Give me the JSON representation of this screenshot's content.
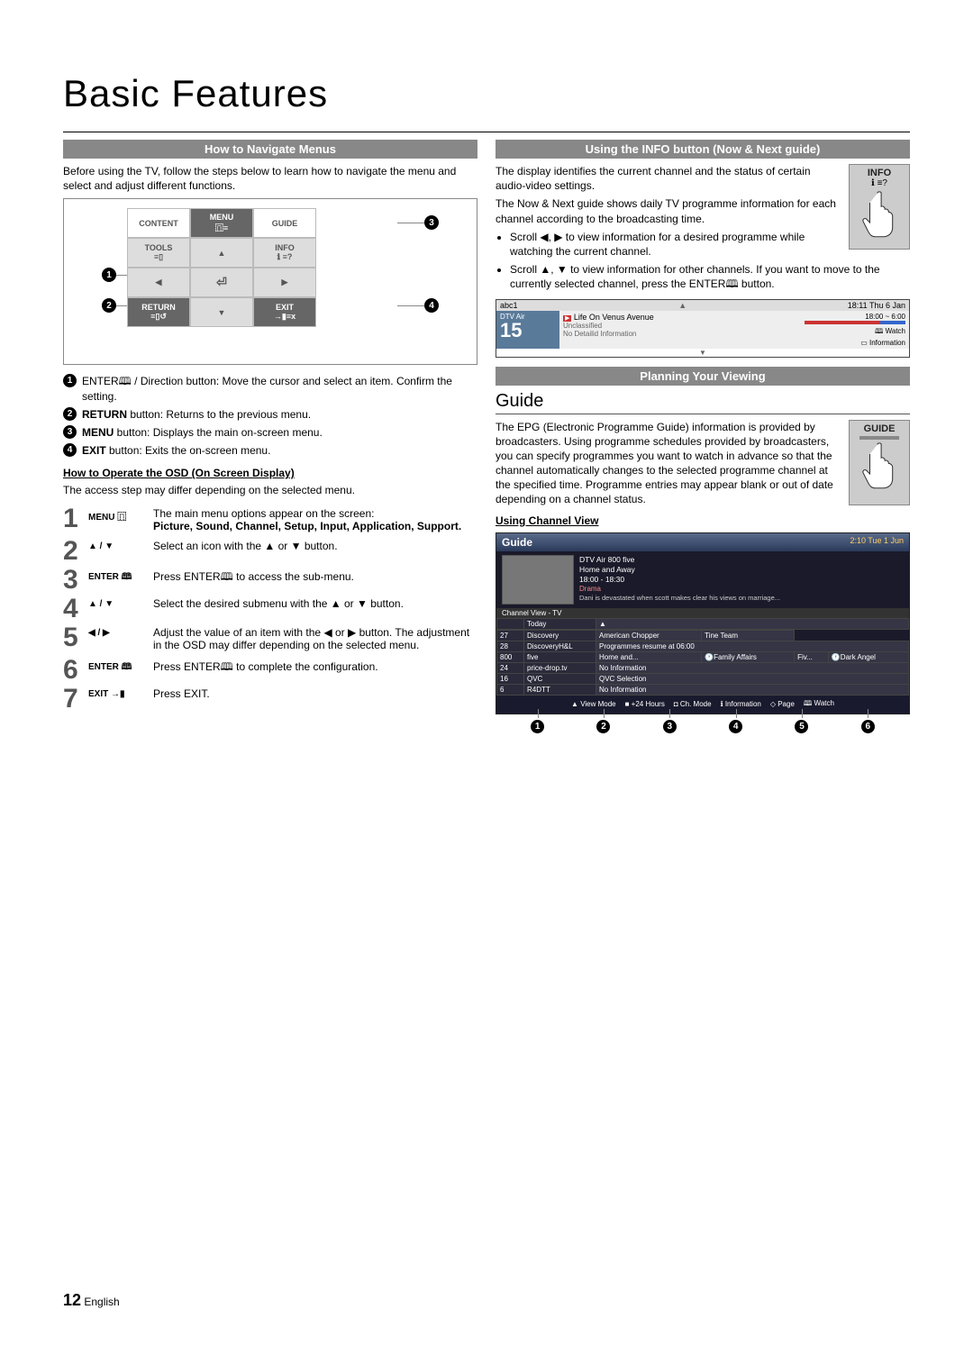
{
  "title": "Basic Features",
  "left": {
    "section1_title": "How to Navigate Menus",
    "intro": "Before using the TV, follow the steps below to learn how to navigate the menu and select and adjust different functions.",
    "remote": {
      "content": "CONTENT",
      "menu": "MENU",
      "guide": "GUIDE",
      "tools": "TOOLS",
      "info": "INFO",
      "return": "RETURN",
      "exit": "EXIT"
    },
    "callouts": {
      "1": "ENTER🕮 / Direction button: Move the cursor and select an item. Confirm the setting.",
      "2": "RETURN button: Returns to the previous menu.",
      "3": "MENU button: Displays the main on-screen menu.",
      "4": "EXIT button: Exits the on-screen menu."
    },
    "osd_head": "How to Operate the OSD (On Screen Display)",
    "osd_note": "The access step may differ depending on the selected menu.",
    "osd": [
      {
        "n": "1",
        "key": "MENU ⿵",
        "desc": "The main menu options appear on the screen:",
        "bold": "Picture, Sound, Channel, Setup, Input, Application, Support."
      },
      {
        "n": "2",
        "key": "▲ / ▼",
        "desc": "Select an icon with the ▲ or ▼ button."
      },
      {
        "n": "3",
        "key": "ENTER 🕮",
        "desc": "Press ENTER🕮 to access the sub-menu."
      },
      {
        "n": "4",
        "key": "▲ / ▼",
        "desc": "Select the desired submenu with the ▲ or ▼ button."
      },
      {
        "n": "5",
        "key": "◀ / ▶",
        "desc": "Adjust the value of an item with the ◀ or ▶ button. The adjustment in the OSD may differ depending on the selected menu."
      },
      {
        "n": "6",
        "key": "ENTER 🕮",
        "desc": "Press ENTER🕮 to complete the configuration."
      },
      {
        "n": "7",
        "key": "EXIT →▮",
        "desc": "Press EXIT."
      }
    ]
  },
  "right": {
    "section1_title": "Using the INFO button (Now & Next guide)",
    "info_label": "INFO",
    "p1": "The display identifies the current channel and the status of certain audio-video settings.",
    "p2": "The Now & Next guide shows daily TV programme information for each channel according to the broadcasting time.",
    "b1": "Scroll ◀, ▶ to view information for a desired programme while watching the current channel.",
    "b2": "Scroll ▲, ▼ to view information for other channels. If you want to move to the currently selected channel, press the ENTER🕮 button.",
    "infobox": {
      "ch_name": "abc1",
      "time": "18:11 Thu 6 Jan",
      "src": "DTV Air",
      "num": "15",
      "prog": "Life On Venus Avenue",
      "rating": "Unclassified",
      "detail": "No Detailid Information",
      "span": "18:00 ~ 6:00",
      "watch": "🕮 Watch",
      "info": "▭ Information"
    },
    "section2_title": "Planning Your Viewing",
    "guide_h": "Guide",
    "guide_label": "GUIDE",
    "guide_p": "The EPG (Electronic Programme Guide) information is provided by broadcasters. Using programme schedules provided by broadcasters, you can specify programmes you want to watch in advance so that the channel automatically changes to the selected programme channel at the specified time. Programme entries may appear blank or out of date depending on a channel status.",
    "chview_h": "Using Channel View",
    "guide_shot": {
      "title": "Guide",
      "datetime": "2:10 Tue 1 Jun",
      "ch_line": "DTV Air 800 five",
      "prog_name": "Home and Away",
      "prog_time": "18:00 - 18:30",
      "genre": "Drama",
      "synopsis": "Dani is devastated when scott makes clear his views on marriage...",
      "sub": "Channel View - TV",
      "today": "Today",
      "rows": [
        {
          "ch": "27",
          "name": "Discovery",
          "progs": [
            "American Chopper",
            "Tine Team"
          ]
        },
        {
          "ch": "28",
          "name": "DiscoveryH&L",
          "progs": [
            "Programmes resume at 06:00"
          ]
        },
        {
          "ch": "800",
          "name": "five",
          "progs": [
            "Home and...",
            "🕐Family Affairs",
            "Fiv...",
            "🕐Dark Angel"
          ]
        },
        {
          "ch": "24",
          "name": "price-drop.tv",
          "progs": [
            "No Information"
          ]
        },
        {
          "ch": "16",
          "name": "QVC",
          "progs": [
            "QVC Selection"
          ]
        },
        {
          "ch": "6",
          "name": "R4DTT",
          "progs": [
            "No Information"
          ]
        }
      ],
      "footer": [
        {
          "color": "#c33",
          "label": "▲ View Mode"
        },
        {
          "color": "#c33",
          "label": "■ +24 Hours"
        },
        {
          "color": "#36c",
          "label": "◘ Ch. Mode"
        },
        {
          "color": "",
          "label": "ℹ Information"
        },
        {
          "color": "",
          "label": "◇ Page"
        },
        {
          "color": "",
          "label": "🕮 Watch"
        }
      ]
    }
  },
  "page_num": "12",
  "page_lang": "English"
}
